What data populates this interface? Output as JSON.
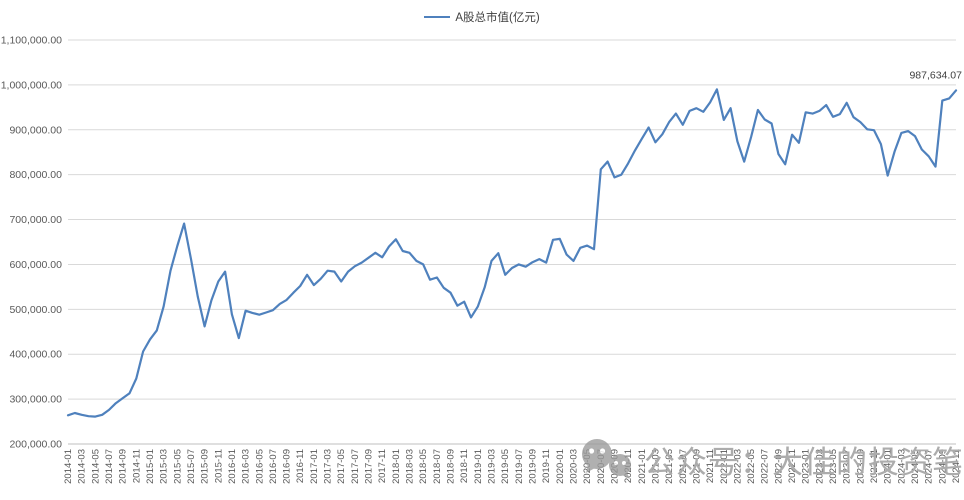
{
  "legend": {
    "label": "A股总市值(亿元)"
  },
  "watermark": {
    "icon": "wechat-logo",
    "text": "公众号：大佳的投资笔记"
  },
  "chart_data": {
    "type": "line",
    "title": "",
    "legend_position": "top-center",
    "grid": true,
    "grid_color": "#D9D9D9",
    "axis_line_color": "#BFBFBF",
    "axis_text_color": "#595959",
    "line_color": "#4F81BD",
    "ylabel": "",
    "xlabel": "",
    "ylim": [
      200000,
      1100000
    ],
    "y_tick_step": 100000,
    "y_tick_format": "1,100,000.00 style (thousands separator, 2 decimals)",
    "x_tick_every": 2,
    "x_tick_rotation": -90,
    "last_point_label": "987,634.07",
    "series_name": "A股总市值(亿元)",
    "x": [
      "2014-01",
      "2014-02",
      "2014-03",
      "2014-04",
      "2014-05",
      "2014-06",
      "2014-07",
      "2014-08",
      "2014-09",
      "2014-10",
      "2014-11",
      "2014-12",
      "2015-01",
      "2015-02",
      "2015-03",
      "2015-04",
      "2015-05",
      "2015-06",
      "2015-07",
      "2015-08",
      "2015-09",
      "2015-10",
      "2015-11",
      "2015-12",
      "2016-01",
      "2016-02",
      "2016-03",
      "2016-04",
      "2016-05",
      "2016-06",
      "2016-07",
      "2016-08",
      "2016-09",
      "2016-10",
      "2016-11",
      "2016-12",
      "2017-01",
      "2017-02",
      "2017-03",
      "2017-04",
      "2017-05",
      "2017-06",
      "2017-07",
      "2017-08",
      "2017-09",
      "2017-10",
      "2017-11",
      "2017-12",
      "2018-01",
      "2018-02",
      "2018-03",
      "2018-04",
      "2018-05",
      "2018-06",
      "2018-07",
      "2018-08",
      "2018-09",
      "2018-10",
      "2018-11",
      "2018-12",
      "2019-01",
      "2019-02",
      "2019-03",
      "2019-04",
      "2019-05",
      "2019-06",
      "2019-07",
      "2019-08",
      "2019-09",
      "2019-10",
      "2019-11",
      "2019-12",
      "2020-01",
      "2020-02",
      "2020-03",
      "2020-04",
      "2020-05",
      "2020-06",
      "2020-07",
      "2020-08",
      "2020-09",
      "2020-10",
      "2020-11",
      "2020-12",
      "2021-01",
      "2021-02",
      "2021-03",
      "2021-04",
      "2021-05",
      "2021-06",
      "2021-07",
      "2021-08",
      "2021-09",
      "2021-10",
      "2021-11",
      "2021-12",
      "2022-01",
      "2022-02",
      "2022-03",
      "2022-04",
      "2022-05",
      "2022-06",
      "2022-07",
      "2022-08",
      "2022-09",
      "2022-10",
      "2022-11",
      "2022-12",
      "2023-01",
      "2023-02",
      "2023-03",
      "2023-04",
      "2023-05",
      "2023-06",
      "2023-07",
      "2023-08",
      "2023-09",
      "2023-10",
      "2023-11",
      "2023-12",
      "2024-01",
      "2024-02",
      "2024-03",
      "2024-04",
      "2024-05",
      "2024-06",
      "2024-07",
      "2024-08",
      "2024-09",
      "2024-10",
      "2024-11"
    ],
    "values": [
      264000,
      269000,
      265000,
      262000,
      261000,
      265000,
      276000,
      291000,
      302000,
      313000,
      346000,
      406000,
      433000,
      453000,
      506000,
      586000,
      641000,
      691000,
      612000,
      528000,
      462000,
      520000,
      562000,
      584000,
      489000,
      436000,
      497000,
      492000,
      488000,
      493000,
      498000,
      512000,
      521000,
      537000,
      552000,
      577000,
      554000,
      568000,
      586000,
      584000,
      562000,
      584000,
      596000,
      604000,
      615000,
      626000,
      616000,
      640000,
      656000,
      630000,
      626000,
      608000,
      600000,
      566000,
      571000,
      548000,
      537000,
      508000,
      517000,
      482000,
      506000,
      549000,
      608000,
      625000,
      577000,
      592000,
      600000,
      595000,
      605000,
      612000,
      604000,
      655000,
      657000,
      622000,
      608000,
      637000,
      642000,
      634000,
      812000,
      829000,
      794000,
      800000,
      825000,
      854000,
      880000,
      905000,
      872000,
      890000,
      917000,
      936000,
      911000,
      942000,
      948000,
      940000,
      961000,
      990000,
      922000,
      948000,
      874000,
      829000,
      884000,
      944000,
      923000,
      914000,
      846000,
      823000,
      889000,
      871000,
      939000,
      936000,
      942000,
      955000,
      929000,
      935000,
      960000,
      928000,
      917000,
      901000,
      899000,
      868000,
      798000,
      851000,
      893000,
      897000,
      886000,
      856000,
      841000,
      818000,
      965000,
      970000,
      987634.07
    ]
  }
}
